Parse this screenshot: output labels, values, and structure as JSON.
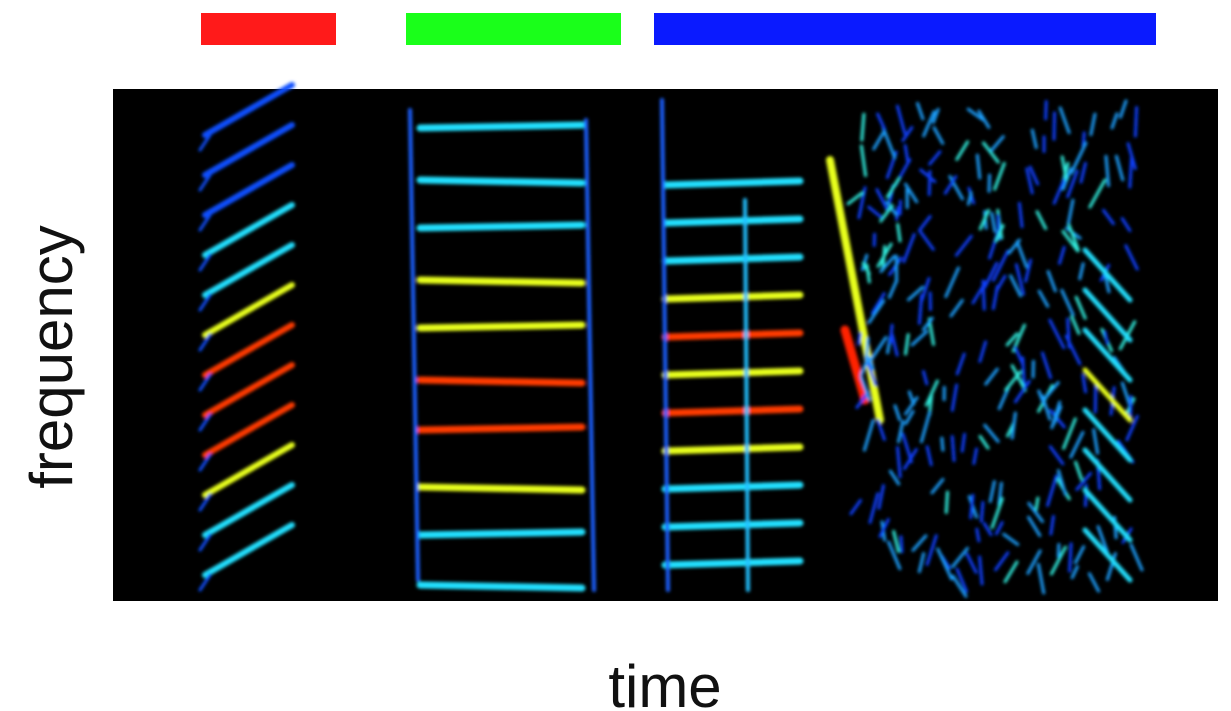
{
  "axis_labels": {
    "x": "time",
    "y": "frequency"
  }
}
